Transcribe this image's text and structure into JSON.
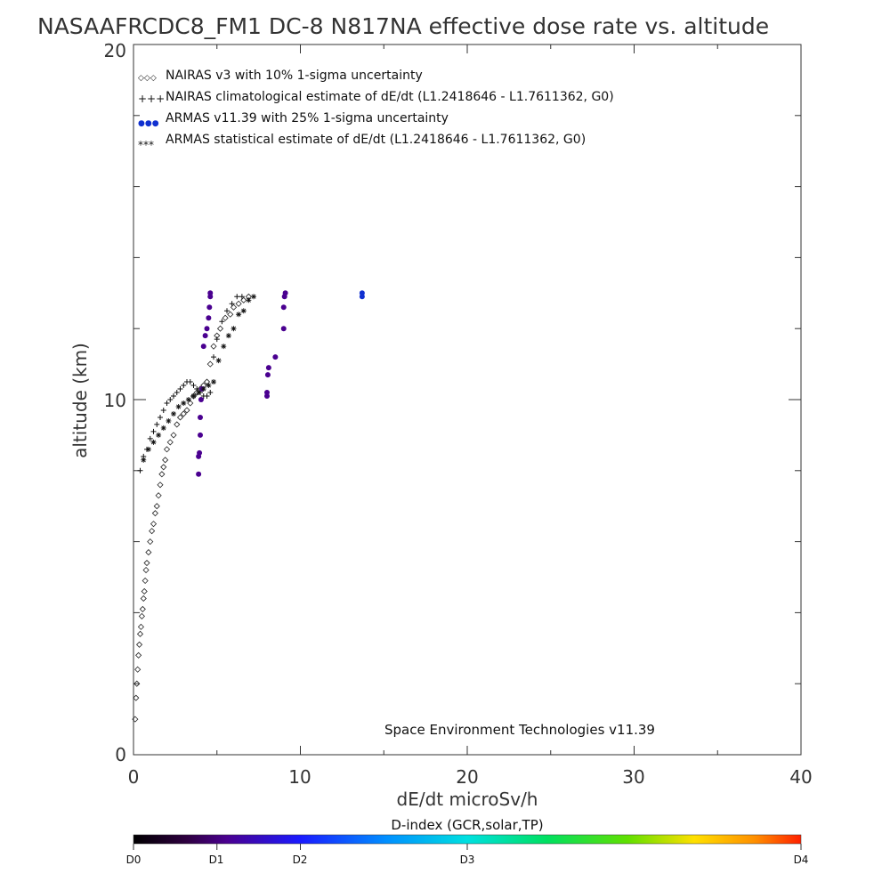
{
  "chart_data": {
    "type": "scatter",
    "title": "NASAAFRCDC8_FM1 DC-8   N817NA effective dose rate vs. altitude",
    "xlabel": "dE/dt microSv/h",
    "ylabel": "altitude (km)",
    "xlim": [
      0,
      40
    ],
    "ylim": [
      0,
      20
    ],
    "x_tick_labels": [
      "0",
      "10",
      "20",
      "30",
      "40"
    ],
    "y_tick_labels": [
      "0",
      "10",
      "20"
    ],
    "grid": false,
    "legend_position": "top-left",
    "legend": [
      {
        "symbol": "◇◇◇",
        "label": "NAIRAS v3 with 10% 1-sigma uncertainty"
      },
      {
        "symbol": "+++",
        "label": "NAIRAS climatological estimate of dE/dt (L1.2418646 - L1.7611362, G0)"
      },
      {
        "symbol": "●●●",
        "label": "ARMAS v11.39 with 25% 1-sigma uncertainty"
      },
      {
        "symbol": "***",
        "label": "ARMAS statistical estimate of dE/dt (L1.2418646 - L1.7611362, G0)"
      }
    ],
    "annotation": "Space Environment Technologies v11.39",
    "colorbar": {
      "title": "D-index (GCR,solar,TP)",
      "labels": [
        {
          "text": "D0",
          "pos": 0.0
        },
        {
          "text": "D1",
          "pos": 0.125
        },
        {
          "text": "D2",
          "pos": 0.25
        },
        {
          "text": "D3",
          "pos": 0.5
        },
        {
          "text": "D4",
          "pos": 1.0
        }
      ]
    },
    "series": [
      {
        "marker": "diamond",
        "x": [
          0.1,
          0.15,
          0.2,
          0.25,
          0.3,
          0.35,
          0.4,
          0.45,
          0.5,
          0.55,
          0.6,
          0.65,
          0.7,
          0.75,
          0.8,
          0.9,
          1.0,
          1.1,
          1.2,
          1.3,
          1.4,
          1.5,
          1.6,
          1.7,
          1.8,
          1.9,
          2.0,
          2.2,
          2.4,
          2.6,
          2.8,
          3.0,
          3.2,
          3.4,
          3.6,
          3.8,
          4.0,
          4.2,
          4.4,
          4.6,
          4.8,
          5.0,
          5.2,
          5.5,
          5.8,
          6.0,
          6.3,
          6.6,
          6.9
        ],
        "y": [
          1.0,
          1.6,
          2.0,
          2.4,
          2.8,
          3.1,
          3.4,
          3.6,
          3.9,
          4.1,
          4.4,
          4.6,
          4.9,
          5.2,
          5.4,
          5.7,
          6.0,
          6.3,
          6.5,
          6.8,
          7.0,
          7.3,
          7.6,
          7.9,
          8.1,
          8.3,
          8.6,
          8.8,
          9.0,
          9.3,
          9.5,
          9.6,
          9.7,
          9.9,
          10.1,
          10.2,
          10.3,
          10.4,
          10.5,
          11.0,
          11.5,
          11.8,
          12.0,
          12.3,
          12.4,
          12.6,
          12.7,
          12.8,
          12.9
        ]
      },
      {
        "marker": "plus",
        "x": [
          0.4,
          0.6,
          0.8,
          1.0,
          1.2,
          1.4,
          1.6,
          1.8,
          2.0,
          2.2,
          2.4,
          2.6,
          2.8,
          3.0,
          3.2,
          3.4,
          3.6,
          3.8,
          4.0,
          4.2,
          4.4,
          4.6,
          4.8,
          5.0,
          5.3,
          5.6,
          5.9,
          6.2,
          6.5
        ],
        "y": [
          8.0,
          8.4,
          8.6,
          8.9,
          9.1,
          9.3,
          9.5,
          9.7,
          9.9,
          10.0,
          10.1,
          10.2,
          10.3,
          10.4,
          10.5,
          10.5,
          10.4,
          10.3,
          10.2,
          10.1,
          10.1,
          10.2,
          11.2,
          11.7,
          12.2,
          12.5,
          12.7,
          12.9,
          12.9
        ]
      },
      {
        "marker": "dot",
        "x": [
          3.9,
          3.9,
          3.95,
          4.0,
          4.0,
          4.05,
          4.1,
          4.2,
          4.3,
          4.4,
          4.5,
          4.55,
          4.6,
          4.6,
          8.0,
          8.0,
          8.05,
          8.1,
          8.5,
          9.0,
          9.0,
          9.05,
          9.1,
          13.7,
          13.7
        ],
        "y": [
          7.9,
          8.4,
          8.5,
          9.0,
          9.5,
          10.0,
          10.3,
          11.5,
          11.8,
          12.0,
          12.3,
          12.6,
          12.9,
          13.0,
          10.1,
          10.2,
          10.7,
          10.9,
          11.2,
          12.0,
          12.6,
          12.9,
          13.0,
          12.9,
          13.0
        ],
        "d_index": [
          0.2,
          0.2,
          0.2,
          0.2,
          0.2,
          0.2,
          0.2,
          0.2,
          0.2,
          0.2,
          0.2,
          0.2,
          0.2,
          0.2,
          0.2,
          0.2,
          0.2,
          0.2,
          0.2,
          0.2,
          0.2,
          0.2,
          0.2,
          0.3,
          0.3
        ]
      },
      {
        "marker": "asterisk",
        "x": [
          0.6,
          0.9,
          1.2,
          1.5,
          1.8,
          2.1,
          2.4,
          2.7,
          3.0,
          3.3,
          3.6,
          3.9,
          4.2,
          4.5,
          4.8,
          5.1,
          5.4,
          5.7,
          6.0,
          6.3,
          6.6,
          6.9,
          7.2
        ],
        "y": [
          8.3,
          8.6,
          8.8,
          9.0,
          9.2,
          9.4,
          9.6,
          9.8,
          9.9,
          10.0,
          10.1,
          10.2,
          10.3,
          10.4,
          10.5,
          11.1,
          11.5,
          11.8,
          12.0,
          12.4,
          12.5,
          12.8,
          12.9
        ]
      }
    ]
  }
}
